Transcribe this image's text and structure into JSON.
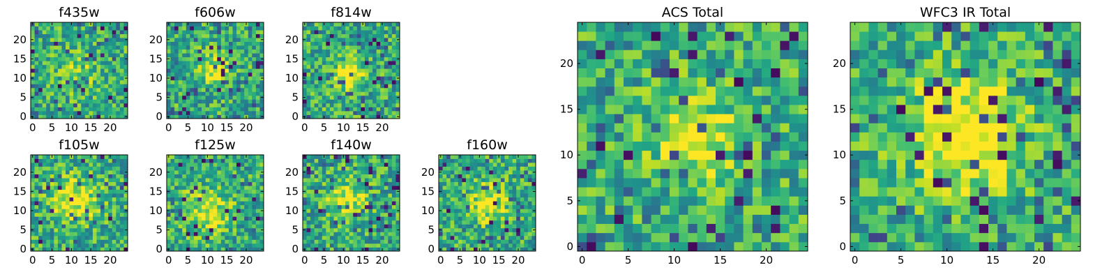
{
  "chart_data": {
    "type": "heatmap",
    "colormap": "viridis",
    "panels": [
      {
        "title": "f435w",
        "xlim": [
          0,
          24
        ],
        "ylim": [
          0,
          24
        ],
        "xticks": [
          0,
          5,
          10,
          15,
          20
        ],
        "yticks": [
          0,
          5,
          10,
          15,
          20
        ],
        "seed": 11,
        "peak": 0.15,
        "center": [
          12,
          12
        ],
        "width": 4,
        "pixel": 1
      },
      {
        "title": "f606w",
        "xlim": [
          0,
          24
        ],
        "ylim": [
          0,
          24
        ],
        "xticks": [
          0,
          5,
          10,
          15,
          20
        ],
        "yticks": [
          0,
          5,
          10,
          15,
          20
        ],
        "seed": 23,
        "peak": 0.35,
        "center": [
          12,
          12
        ],
        "width": 3,
        "pixel": 1
      },
      {
        "title": "f814w",
        "xlim": [
          0,
          24
        ],
        "ylim": [
          0,
          24
        ],
        "xticks": [
          0,
          5,
          10,
          15,
          20
        ],
        "yticks": [
          0,
          5,
          10,
          15,
          20
        ],
        "seed": 37,
        "peak": 0.5,
        "center": [
          12,
          11
        ],
        "width": 2.5,
        "pixel": 1
      },
      {
        "title": "f105w",
        "xlim": [
          0,
          24
        ],
        "ylim": [
          0,
          24
        ],
        "xticks": [
          0,
          5,
          10,
          15,
          20
        ],
        "yticks": [
          0,
          5,
          10,
          15,
          20
        ],
        "seed": 41,
        "peak": 0.4,
        "center": [
          11,
          13
        ],
        "width": 4,
        "pixel": 1
      },
      {
        "title": "f125w",
        "xlim": [
          0,
          24
        ],
        "ylim": [
          0,
          24
        ],
        "xticks": [
          0,
          5,
          10,
          15,
          20
        ],
        "yticks": [
          0,
          5,
          10,
          15,
          20
        ],
        "seed": 53,
        "peak": 0.35,
        "center": [
          10,
          10
        ],
        "width": 4,
        "pixel": 1
      },
      {
        "title": "f140w",
        "xlim": [
          0,
          24
        ],
        "ylim": [
          0,
          24
        ],
        "xticks": [
          0,
          5,
          10,
          15,
          20
        ],
        "yticks": [
          0,
          5,
          10,
          15,
          20
        ],
        "seed": 67,
        "peak": 0.35,
        "center": [
          11,
          13
        ],
        "width": 3.5,
        "pixel": 1
      },
      {
        "title": "f160w",
        "xlim": [
          0,
          24
        ],
        "ylim": [
          0,
          24
        ],
        "xticks": [
          0,
          5,
          10,
          15,
          20
        ],
        "yticks": [
          0,
          5,
          10,
          15,
          20
        ],
        "seed": 79,
        "peak": 0.35,
        "center": [
          12,
          12
        ],
        "width": 3.5,
        "pixel": 1
      },
      {
        "title": "ACS Total",
        "xlim": [
          0,
          24
        ],
        "ylim": [
          0,
          24
        ],
        "xticks": [
          0,
          5,
          10,
          15,
          20
        ],
        "yticks": [
          0,
          5,
          10,
          15,
          20
        ],
        "seed": 97,
        "peak": 0.45,
        "center": [
          12,
          12
        ],
        "width": 3,
        "pixel": 1
      },
      {
        "title": "WFC3 IR Total",
        "xlim": [
          0,
          24
        ],
        "ylim": [
          0,
          24
        ],
        "xticks": [
          0,
          5,
          10,
          15,
          20
        ],
        "yticks": [
          0,
          5,
          10,
          15,
          20
        ],
        "seed": 131,
        "peak": 0.55,
        "center": [
          12,
          12
        ],
        "width": 4,
        "pixel": 1
      }
    ]
  }
}
